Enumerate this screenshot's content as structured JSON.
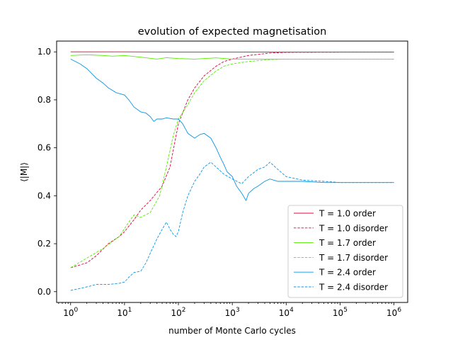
{
  "chart_data": {
    "type": "line",
    "title": "evolution of expected magnetisation",
    "xlabel": "number of Monte Carlo cycles",
    "ylabel": "⟨|M|⟩",
    "xscale": "log",
    "xlim": [
      0.55,
      1800000
    ],
    "ylim": [
      -0.045,
      1.045
    ],
    "xticks": [
      {
        "value": 1,
        "base": "10",
        "exp": "0"
      },
      {
        "value": 10,
        "base": "10",
        "exp": "1"
      },
      {
        "value": 100,
        "base": "10",
        "exp": "2"
      },
      {
        "value": 1000,
        "base": "10",
        "exp": "3"
      },
      {
        "value": 10000,
        "base": "10",
        "exp": "4"
      },
      {
        "value": 100000,
        "base": "10",
        "exp": "5"
      },
      {
        "value": 1000000,
        "base": "10",
        "exp": "6"
      }
    ],
    "yticks": [
      "0.0",
      "0.2",
      "0.4",
      "0.6",
      "0.8",
      "1.0"
    ],
    "grid": false,
    "legend_position": "lower-right",
    "series": [
      {
        "name": "T = 1.0 order",
        "color": "#e8003a",
        "dash": "solid",
        "x": [
          1,
          10,
          100,
          1000,
          10000,
          100000,
          1000000
        ],
        "y": [
          1.0,
          1.0,
          0.999,
          0.999,
          0.999,
          0.999,
          0.999
        ]
      },
      {
        "name": "T = 1.0 disorder",
        "color": "#e8003a",
        "dash": "dashed",
        "x": [
          1,
          2,
          3,
          5,
          8,
          10,
          15,
          20,
          30,
          50,
          70,
          100,
          150,
          200,
          300,
          500,
          700,
          1000,
          2000,
          5000,
          10000,
          100000,
          1000000
        ],
        "y": [
          0.1,
          0.12,
          0.15,
          0.2,
          0.23,
          0.25,
          0.3,
          0.34,
          0.38,
          0.44,
          0.52,
          0.7,
          0.8,
          0.85,
          0.9,
          0.94,
          0.96,
          0.97,
          0.985,
          0.995,
          0.998,
          0.999,
          0.999
        ]
      },
      {
        "name": "T = 1.7 order",
        "color": "#55ee00",
        "dash": "solid",
        "x": [
          1,
          2,
          4,
          6,
          10,
          20,
          40,
          60,
          100,
          200,
          500,
          1000,
          10000,
          100000,
          1000000
        ],
        "y": [
          0.985,
          0.988,
          0.985,
          0.982,
          0.985,
          0.978,
          0.97,
          0.976,
          0.972,
          0.97,
          0.975,
          0.97,
          0.97,
          0.97,
          0.97
        ]
      },
      {
        "name": "T = 1.7 disorder",
        "color": "#55ee00",
        "dash": "dashed",
        "x": [
          1,
          2,
          4,
          8,
          12,
          15,
          20,
          30,
          45,
          60,
          80,
          100,
          150,
          200,
          300,
          500,
          700,
          1000,
          2000,
          5000,
          10000,
          100000,
          1000000
        ],
        "y": [
          0.1,
          0.14,
          0.18,
          0.23,
          0.29,
          0.32,
          0.31,
          0.33,
          0.4,
          0.52,
          0.65,
          0.72,
          0.78,
          0.83,
          0.88,
          0.92,
          0.94,
          0.95,
          0.96,
          0.968,
          0.97,
          0.97,
          0.97
        ]
      },
      {
        "name": "T = 2.4 order",
        "color": "#0a96e6",
        "dash": "solid",
        "x": [
          1,
          1.5,
          2,
          3,
          4,
          5,
          7,
          10,
          12,
          15,
          20,
          25,
          30,
          35,
          40,
          50,
          60,
          80,
          100,
          120,
          150,
          200,
          250,
          300,
          400,
          500,
          600,
          700,
          800,
          1000,
          1200,
          1500,
          1800,
          2000,
          2500,
          3000,
          4000,
          5000,
          7000,
          10000,
          20000,
          50000,
          100000,
          300000,
          1000000
        ],
        "y": [
          0.97,
          0.95,
          0.93,
          0.89,
          0.87,
          0.85,
          0.83,
          0.82,
          0.8,
          0.77,
          0.75,
          0.745,
          0.73,
          0.71,
          0.72,
          0.72,
          0.725,
          0.72,
          0.72,
          0.7,
          0.66,
          0.64,
          0.655,
          0.66,
          0.64,
          0.6,
          0.56,
          0.53,
          0.5,
          0.48,
          0.44,
          0.41,
          0.38,
          0.41,
          0.43,
          0.44,
          0.46,
          0.47,
          0.46,
          0.46,
          0.46,
          0.455,
          0.455,
          0.455,
          0.455
        ]
      },
      {
        "name": "T = 2.4 disorder",
        "color": "#0a96e6",
        "dash": "dashed",
        "x": [
          1,
          2,
          3,
          5,
          8,
          10,
          12,
          15,
          20,
          25,
          30,
          40,
          50,
          60,
          70,
          80,
          90,
          100,
          120,
          150,
          200,
          250,
          300,
          400,
          500,
          700,
          1000,
          1500,
          2000,
          3000,
          4000,
          5000,
          7000,
          10000,
          20000,
          50000,
          100000,
          1000000
        ],
        "y": [
          0.005,
          0.02,
          0.03,
          0.03,
          0.035,
          0.04,
          0.06,
          0.08,
          0.085,
          0.12,
          0.16,
          0.22,
          0.26,
          0.29,
          0.26,
          0.24,
          0.23,
          0.25,
          0.33,
          0.4,
          0.46,
          0.49,
          0.52,
          0.54,
          0.52,
          0.49,
          0.47,
          0.45,
          0.48,
          0.51,
          0.52,
          0.54,
          0.51,
          0.48,
          0.465,
          0.46,
          0.455,
          0.455
        ]
      }
    ]
  }
}
